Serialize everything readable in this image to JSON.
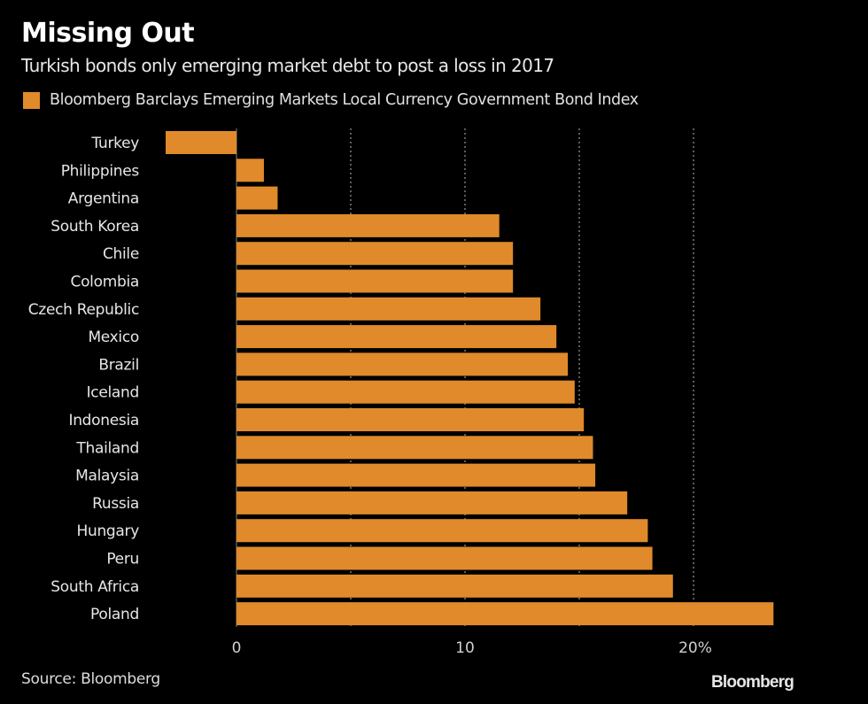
{
  "header": {
    "title": "Missing Out",
    "subtitle": "Turkish bonds only emerging market debt to post a loss in 2017"
  },
  "footer": {
    "source": "Source: Bloomberg",
    "logo": "Bloomberg"
  },
  "colors": {
    "bar": "#E08A2B",
    "background": "#000000",
    "grid": "#7a7a7a",
    "zero_line": "#555555"
  },
  "chart_data": {
    "type": "bar",
    "orientation": "horizontal",
    "title": "Missing Out",
    "subtitle": "Turkish bonds only emerging market debt to post a loss in 2017",
    "xlabel": "",
    "ylabel": "",
    "legend": {
      "position": "top-left",
      "entries": [
        "Bloomberg Barclays Emerging Markets Local Currency Government Bond Index"
      ]
    },
    "categories": [
      "Turkey",
      "Philippines",
      "Argentina",
      "South Korea",
      "Chile",
      "Colombia",
      "Czech Republic",
      "Mexico",
      "Brazil",
      "Iceland",
      "Indonesia",
      "Thailand",
      "Malaysia",
      "Russia",
      "Hungary",
      "Peru",
      "South Africa",
      "Poland"
    ],
    "series": [
      {
        "name": "Bloomberg Barclays Emerging Markets Local Currency Government Bond Index",
        "values": [
          -3.1,
          1.2,
          1.8,
          11.5,
          12.1,
          12.1,
          13.3,
          14.0,
          14.5,
          14.8,
          15.2,
          15.6,
          15.7,
          17.1,
          18.0,
          18.2,
          19.1,
          23.5
        ]
      }
    ],
    "xlim": [
      -3.1,
      24
    ],
    "xticks": [
      0,
      10,
      20
    ],
    "xtick_labels": [
      "0",
      "10",
      "20%"
    ],
    "gridlines": [
      5,
      10,
      15,
      20
    ],
    "grid": true,
    "source": "Source: Bloomberg"
  }
}
